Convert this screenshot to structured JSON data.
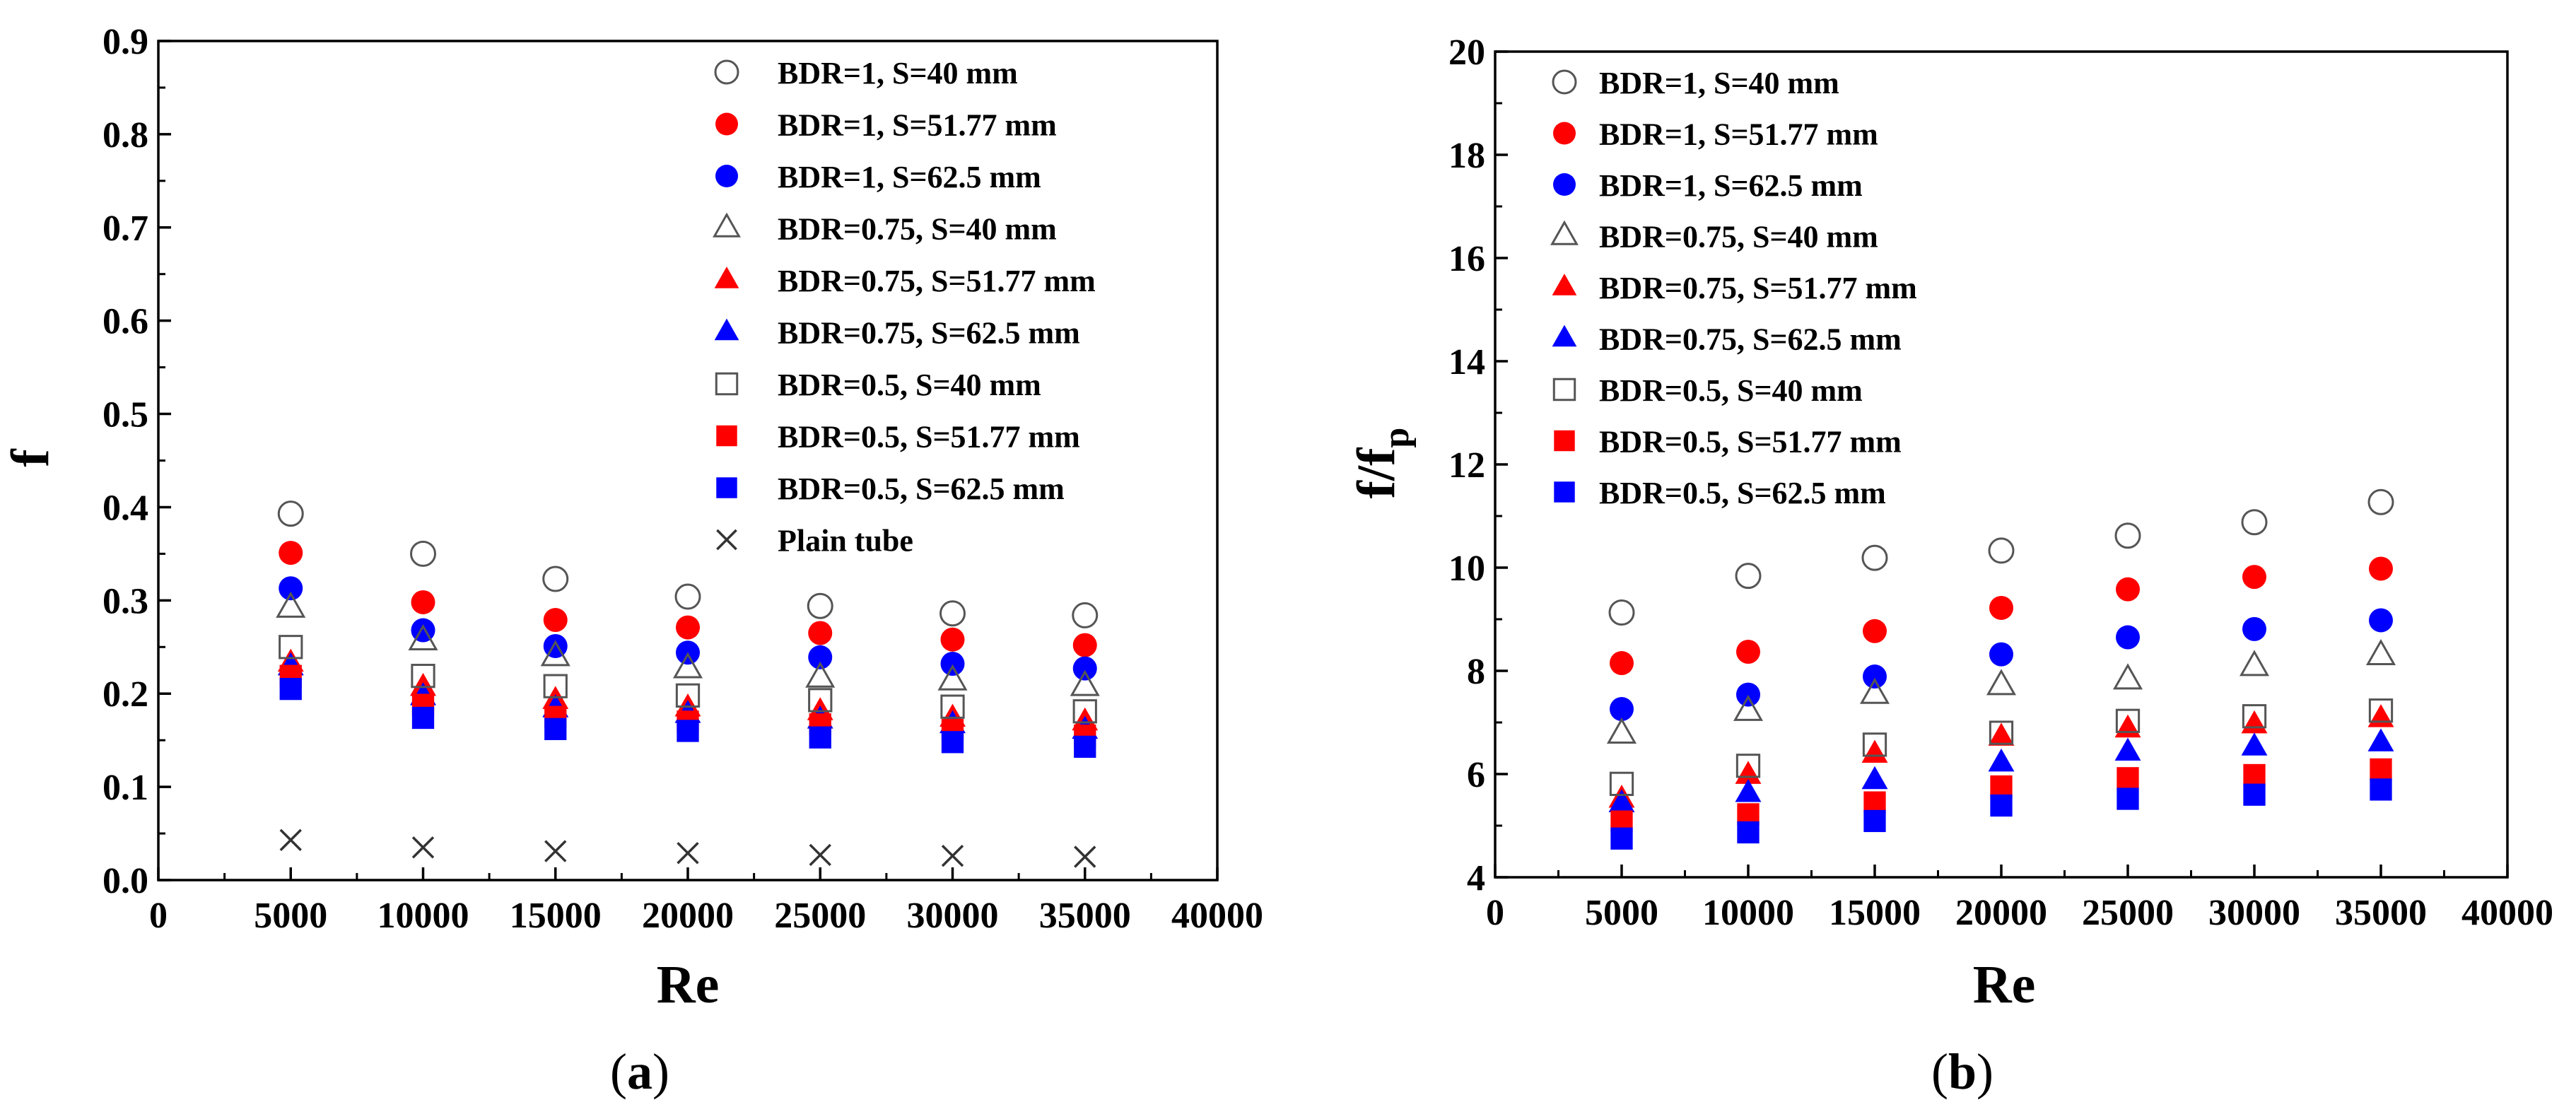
{
  "colors": {
    "red": "#ff0000",
    "blue": "#0000ff",
    "open": "#555555",
    "axis": "#000000",
    "plain": "#333333"
  },
  "chart_data": [
    {
      "id": "a",
      "type": "scatter",
      "caption": "(a)",
      "caption_letter": "a",
      "xlabel": "Re",
      "ylabel": "f",
      "ylabel_sub": "",
      "xlim": [
        0,
        40000
      ],
      "ylim": [
        0,
        0.9
      ],
      "xticks": [
        0,
        5000,
        10000,
        15000,
        20000,
        25000,
        30000,
        35000,
        40000
      ],
      "xtick_labels": [
        "0",
        "5000",
        "10000",
        "15000",
        "20000",
        "25000",
        "30000",
        "35000",
        "40000"
      ],
      "yticks": [
        0,
        0.1,
        0.2,
        0.3,
        0.4,
        0.5,
        0.6,
        0.7,
        0.8,
        0.9
      ],
      "ytick_labels": [
        "0.0",
        "0.1",
        "0.2",
        "0.3",
        "0.4",
        "0.5",
        "0.6",
        "0.7",
        "0.8",
        "0.9"
      ],
      "legend_position": "top-right",
      "x": [
        5000,
        10000,
        15000,
        20000,
        25000,
        30000,
        35000
      ],
      "series": [
        {
          "name": "BDR=1, S=40 mm",
          "marker": "circle",
          "fill": "open",
          "color": "#555555",
          "values": [
            0.393,
            0.35,
            0.323,
            0.304,
            0.294,
            0.286,
            0.284
          ]
        },
        {
          "name": "BDR=1, S=51.77 mm",
          "marker": "circle",
          "fill": "solid",
          "color": "#ff0000",
          "values": [
            0.351,
            0.298,
            0.279,
            0.271,
            0.265,
            0.258,
            0.252
          ]
        },
        {
          "name": "BDR=1, S=62.5 mm",
          "marker": "circle",
          "fill": "solid",
          "color": "#0000ff",
          "values": [
            0.313,
            0.268,
            0.251,
            0.244,
            0.239,
            0.232,
            0.227
          ]
        },
        {
          "name": "BDR=0.75, S=40 mm",
          "marker": "triangle",
          "fill": "open",
          "color": "#555555",
          "values": [
            0.292,
            0.257,
            0.24,
            0.227,
            0.217,
            0.214,
            0.208
          ]
        },
        {
          "name": "BDR=0.75, S=51.77 mm",
          "marker": "triangle",
          "fill": "solid",
          "color": "#ff0000",
          "values": [
            0.233,
            0.207,
            0.193,
            0.185,
            0.181,
            0.174,
            0.17
          ]
        },
        {
          "name": "BDR=0.75, S=62.5 mm",
          "marker": "triangle",
          "fill": "solid",
          "color": "#0000ff",
          "values": [
            0.229,
            0.197,
            0.184,
            0.178,
            0.172,
            0.167,
            0.161
          ]
        },
        {
          "name": "BDR=0.5, S=40 mm",
          "marker": "square",
          "fill": "open",
          "color": "#555555",
          "values": [
            0.25,
            0.219,
            0.208,
            0.198,
            0.193,
            0.186,
            0.181
          ]
        },
        {
          "name": "BDR=0.5, S=51.77 mm",
          "marker": "square",
          "fill": "solid",
          "color": "#ff0000",
          "values": [
            0.219,
            0.188,
            0.175,
            0.17,
            0.167,
            0.161,
            0.155
          ]
        },
        {
          "name": "BDR=0.5, S=62.5 mm",
          "marker": "square",
          "fill": "solid",
          "color": "#0000ff",
          "values": [
            0.205,
            0.174,
            0.162,
            0.16,
            0.153,
            0.148,
            0.143
          ]
        },
        {
          "name": "Plain tube",
          "marker": "x",
          "fill": "open",
          "color": "#333333",
          "values": [
            0.043,
            0.035,
            0.031,
            0.029,
            0.027,
            0.026,
            0.025
          ]
        }
      ]
    },
    {
      "id": "b",
      "type": "scatter",
      "caption": "(b)",
      "caption_letter": "b",
      "xlabel": "Re",
      "ylabel": "f/f",
      "ylabel_sub": "p",
      "xlim": [
        0,
        40000
      ],
      "ylim": [
        4,
        20
      ],
      "xticks": [
        0,
        5000,
        10000,
        15000,
        20000,
        25000,
        30000,
        35000,
        40000
      ],
      "xtick_labels": [
        "0",
        "5000",
        "10000",
        "15000",
        "20000",
        "25000",
        "30000",
        "35000",
        "40000"
      ],
      "yticks": [
        4,
        6,
        8,
        10,
        12,
        14,
        16,
        18,
        20
      ],
      "ytick_labels": [
        "4",
        "6",
        "8",
        "10",
        "12",
        "14",
        "16",
        "18",
        "20"
      ],
      "legend_position": "top-left",
      "x": [
        5000,
        10000,
        15000,
        20000,
        25000,
        30000,
        35000
      ],
      "series": [
        {
          "name": "BDR=1, S=40 mm",
          "marker": "circle",
          "fill": "open",
          "color": "#555555",
          "values": [
            9.13,
            9.84,
            10.19,
            10.33,
            10.62,
            10.88,
            11.27
          ]
        },
        {
          "name": "BDR=1, S=51.77 mm",
          "marker": "circle",
          "fill": "solid",
          "color": "#ff0000",
          "values": [
            8.15,
            8.37,
            8.77,
            9.22,
            9.58,
            9.82,
            9.98
          ]
        },
        {
          "name": "BDR=1, S=62.5 mm",
          "marker": "circle",
          "fill": "solid",
          "color": "#0000ff",
          "values": [
            7.26,
            7.54,
            7.89,
            8.32,
            8.65,
            8.81,
            8.98
          ]
        },
        {
          "name": "BDR=0.75, S=40 mm",
          "marker": "triangle",
          "fill": "open",
          "color": "#555555",
          "values": [
            6.78,
            7.22,
            7.55,
            7.72,
            7.83,
            8.09,
            8.3
          ]
        },
        {
          "name": "BDR=0.75, S=51.77 mm",
          "marker": "triangle",
          "fill": "solid",
          "color": "#ff0000",
          "values": [
            5.52,
            5.98,
            6.39,
            6.72,
            6.88,
            6.96,
            7.08
          ]
        },
        {
          "name": "BDR=0.75, S=62.5 mm",
          "marker": "triangle",
          "fill": "solid",
          "color": "#0000ff",
          "values": [
            5.43,
            5.63,
            5.88,
            6.22,
            6.43,
            6.53,
            6.61
          ]
        },
        {
          "name": "BDR=0.5, S=40 mm",
          "marker": "square",
          "fill": "open",
          "color": "#555555",
          "values": [
            5.81,
            6.16,
            6.57,
            6.8,
            7.03,
            7.12,
            7.23
          ]
        },
        {
          "name": "BDR=0.5, S=51.77 mm",
          "marker": "square",
          "fill": "solid",
          "color": "#ff0000",
          "values": [
            5.08,
            5.22,
            5.45,
            5.76,
            5.92,
            5.98,
            6.09
          ]
        },
        {
          "name": "BDR=0.5, S=62.5 mm",
          "marker": "square",
          "fill": "solid",
          "color": "#0000ff",
          "values": [
            4.75,
            4.87,
            5.09,
            5.39,
            5.52,
            5.6,
            5.7
          ]
        }
      ]
    }
  ]
}
